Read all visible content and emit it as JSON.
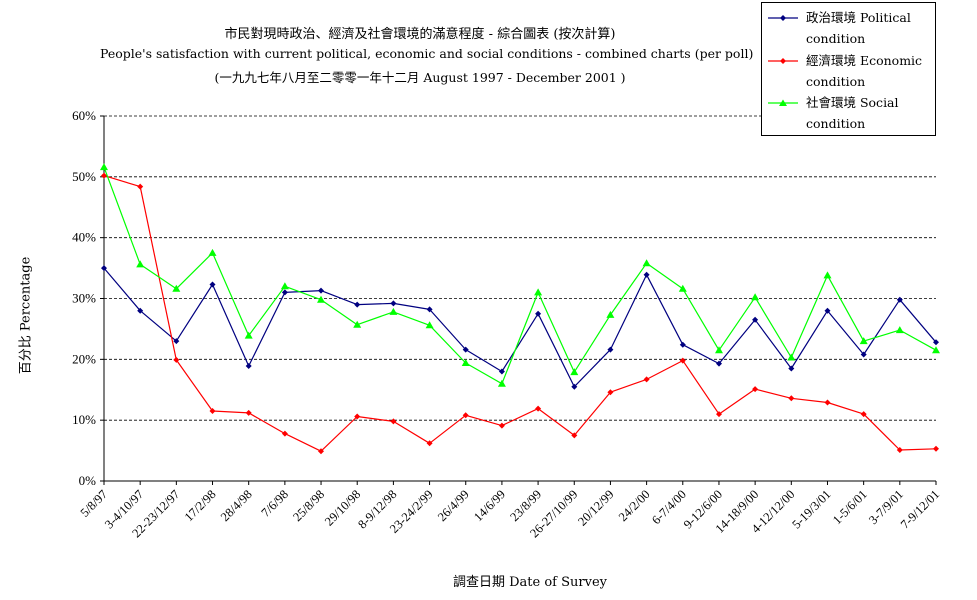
{
  "chart_data": {
    "type": "line",
    "title": "市民對現時政治、經濟及社會環境的滿意程度 - 綜合圖表 (按次計算)",
    "subtitle": "People's satisfaction with current political, economic and social conditions - combined charts  (per poll)",
    "subtitle2": "(一九九七年八月至二零零一年十二月 August 1997 - December 2001 )",
    "xlabel": "調查日期 Date of Survey",
    "ylabel": "百分比 Percentage",
    "ylim": [
      0,
      60
    ],
    "yticks": [
      "0%",
      "10%",
      "20%",
      "30%",
      "40%",
      "50%",
      "60%"
    ],
    "grid": true,
    "legend_position": "top-right",
    "categories": [
      "5/8/97",
      "3-4/10/97",
      "22-23/12/97",
      "17/2/98",
      "28/4/98",
      "7/6/98",
      "25/8/98",
      "29/10/98",
      "8-9/12/98",
      "23-24/2/99",
      "26/4/99",
      "14/6/99",
      "23/8/99",
      "26-27/10/99",
      "20/12/99",
      "24/2/00",
      "6-7/4/00",
      "9-12/6/00",
      "14-18/9/00",
      "4-12/12/00",
      "5-19/3/01",
      "1-5/6/01",
      "3-7/9/01",
      "7-9/12/01"
    ],
    "series": [
      {
        "name": "政治環境 Political condition",
        "color": "#000080",
        "marker": "diamond",
        "values": [
          35,
          28,
          23,
          32.3,
          18.9,
          31,
          31.3,
          29,
          29.2,
          28.2,
          21.6,
          18,
          27.5,
          15.5,
          21.6,
          33.9,
          22.4,
          19.3,
          26.5,
          18.5,
          28,
          20.8,
          29.8,
          22.8
        ]
      },
      {
        "name": "經濟環境 Economic condition",
        "color": "#ff0000",
        "marker": "diamond",
        "values": [
          50.2,
          48.4,
          19.9,
          11.5,
          11.2,
          7.8,
          4.9,
          10.6,
          9.8,
          6.2,
          10.8,
          9.1,
          11.9,
          7.5,
          14.6,
          16.7,
          19.8,
          11,
          15.1,
          13.6,
          12.9,
          11,
          5.1,
          5.3
        ]
      },
      {
        "name": "社會環境 Social condition",
        "color": "#00ff00",
        "marker": "triangle",
        "values": [
          51.6,
          35.6,
          31.6,
          37.5,
          23.9,
          32,
          29.8,
          25.7,
          27.8,
          25.6,
          19.4,
          16,
          31,
          17.9,
          27.3,
          35.8,
          31.6,
          21.5,
          30.2,
          20.3,
          33.8,
          23,
          24.8,
          21.5
        ]
      }
    ]
  },
  "legend": {
    "items": [
      {
        "line1": "政治環境 Political",
        "line2": "condition",
        "color": "#000080",
        "marker": "diamond"
      },
      {
        "line1": "經濟環境 Economic",
        "line2": "condition",
        "color": "#ff0000",
        "marker": "diamond"
      },
      {
        "line1": "社會環境 Social",
        "line2": "condition",
        "color": "#00ff00",
        "marker": "triangle"
      }
    ]
  }
}
